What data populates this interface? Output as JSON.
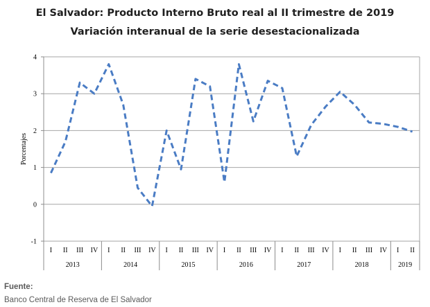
{
  "chart_data": {
    "type": "line",
    "title": "El Salvador: Producto Interno Bruto real al II trimestre de 2019",
    "subtitle": "Variación interanual de la serie desestacionalizada",
    "ylabel": "Porcentajes",
    "ylim": [
      -1,
      4
    ],
    "yticks": [
      "-1",
      "0",
      "1",
      "2",
      "3",
      "4"
    ],
    "grid": true,
    "line_style": "dashed",
    "colors": {
      "series": "#4a7cc4",
      "grid": "#a6a6a6",
      "axis": "#8c8c8c"
    },
    "quarters": [
      "I",
      "II",
      "III",
      "IV",
      "I",
      "II",
      "III",
      "IV",
      "I",
      "II",
      "III",
      "IV",
      "I",
      "II",
      "III",
      "IV",
      "I",
      "II",
      "III",
      "IV",
      "I",
      "II",
      "III",
      "IV",
      "I",
      "II"
    ],
    "years": [
      {
        "label": "2013",
        "count": 4
      },
      {
        "label": "2014",
        "count": 4
      },
      {
        "label": "2015",
        "count": 4
      },
      {
        "label": "2016",
        "count": 4
      },
      {
        "label": "2017",
        "count": 4
      },
      {
        "label": "2018",
        "count": 4
      },
      {
        "label": "2019",
        "count": 2
      }
    ],
    "series": [
      {
        "values": [
          0.85,
          1.7,
          3.3,
          3.0,
          3.8,
          2.7,
          0.45,
          -0.05,
          2.0,
          0.95,
          3.4,
          3.2,
          0.6,
          3.8,
          2.25,
          3.35,
          3.15,
          1.3,
          2.15,
          2.65,
          3.05,
          2.7,
          2.22,
          2.18,
          2.1,
          1.97
        ]
      }
    ]
  },
  "source": {
    "title": "Fuente:",
    "text": "Banco Central de Reserva de El Salvador"
  }
}
